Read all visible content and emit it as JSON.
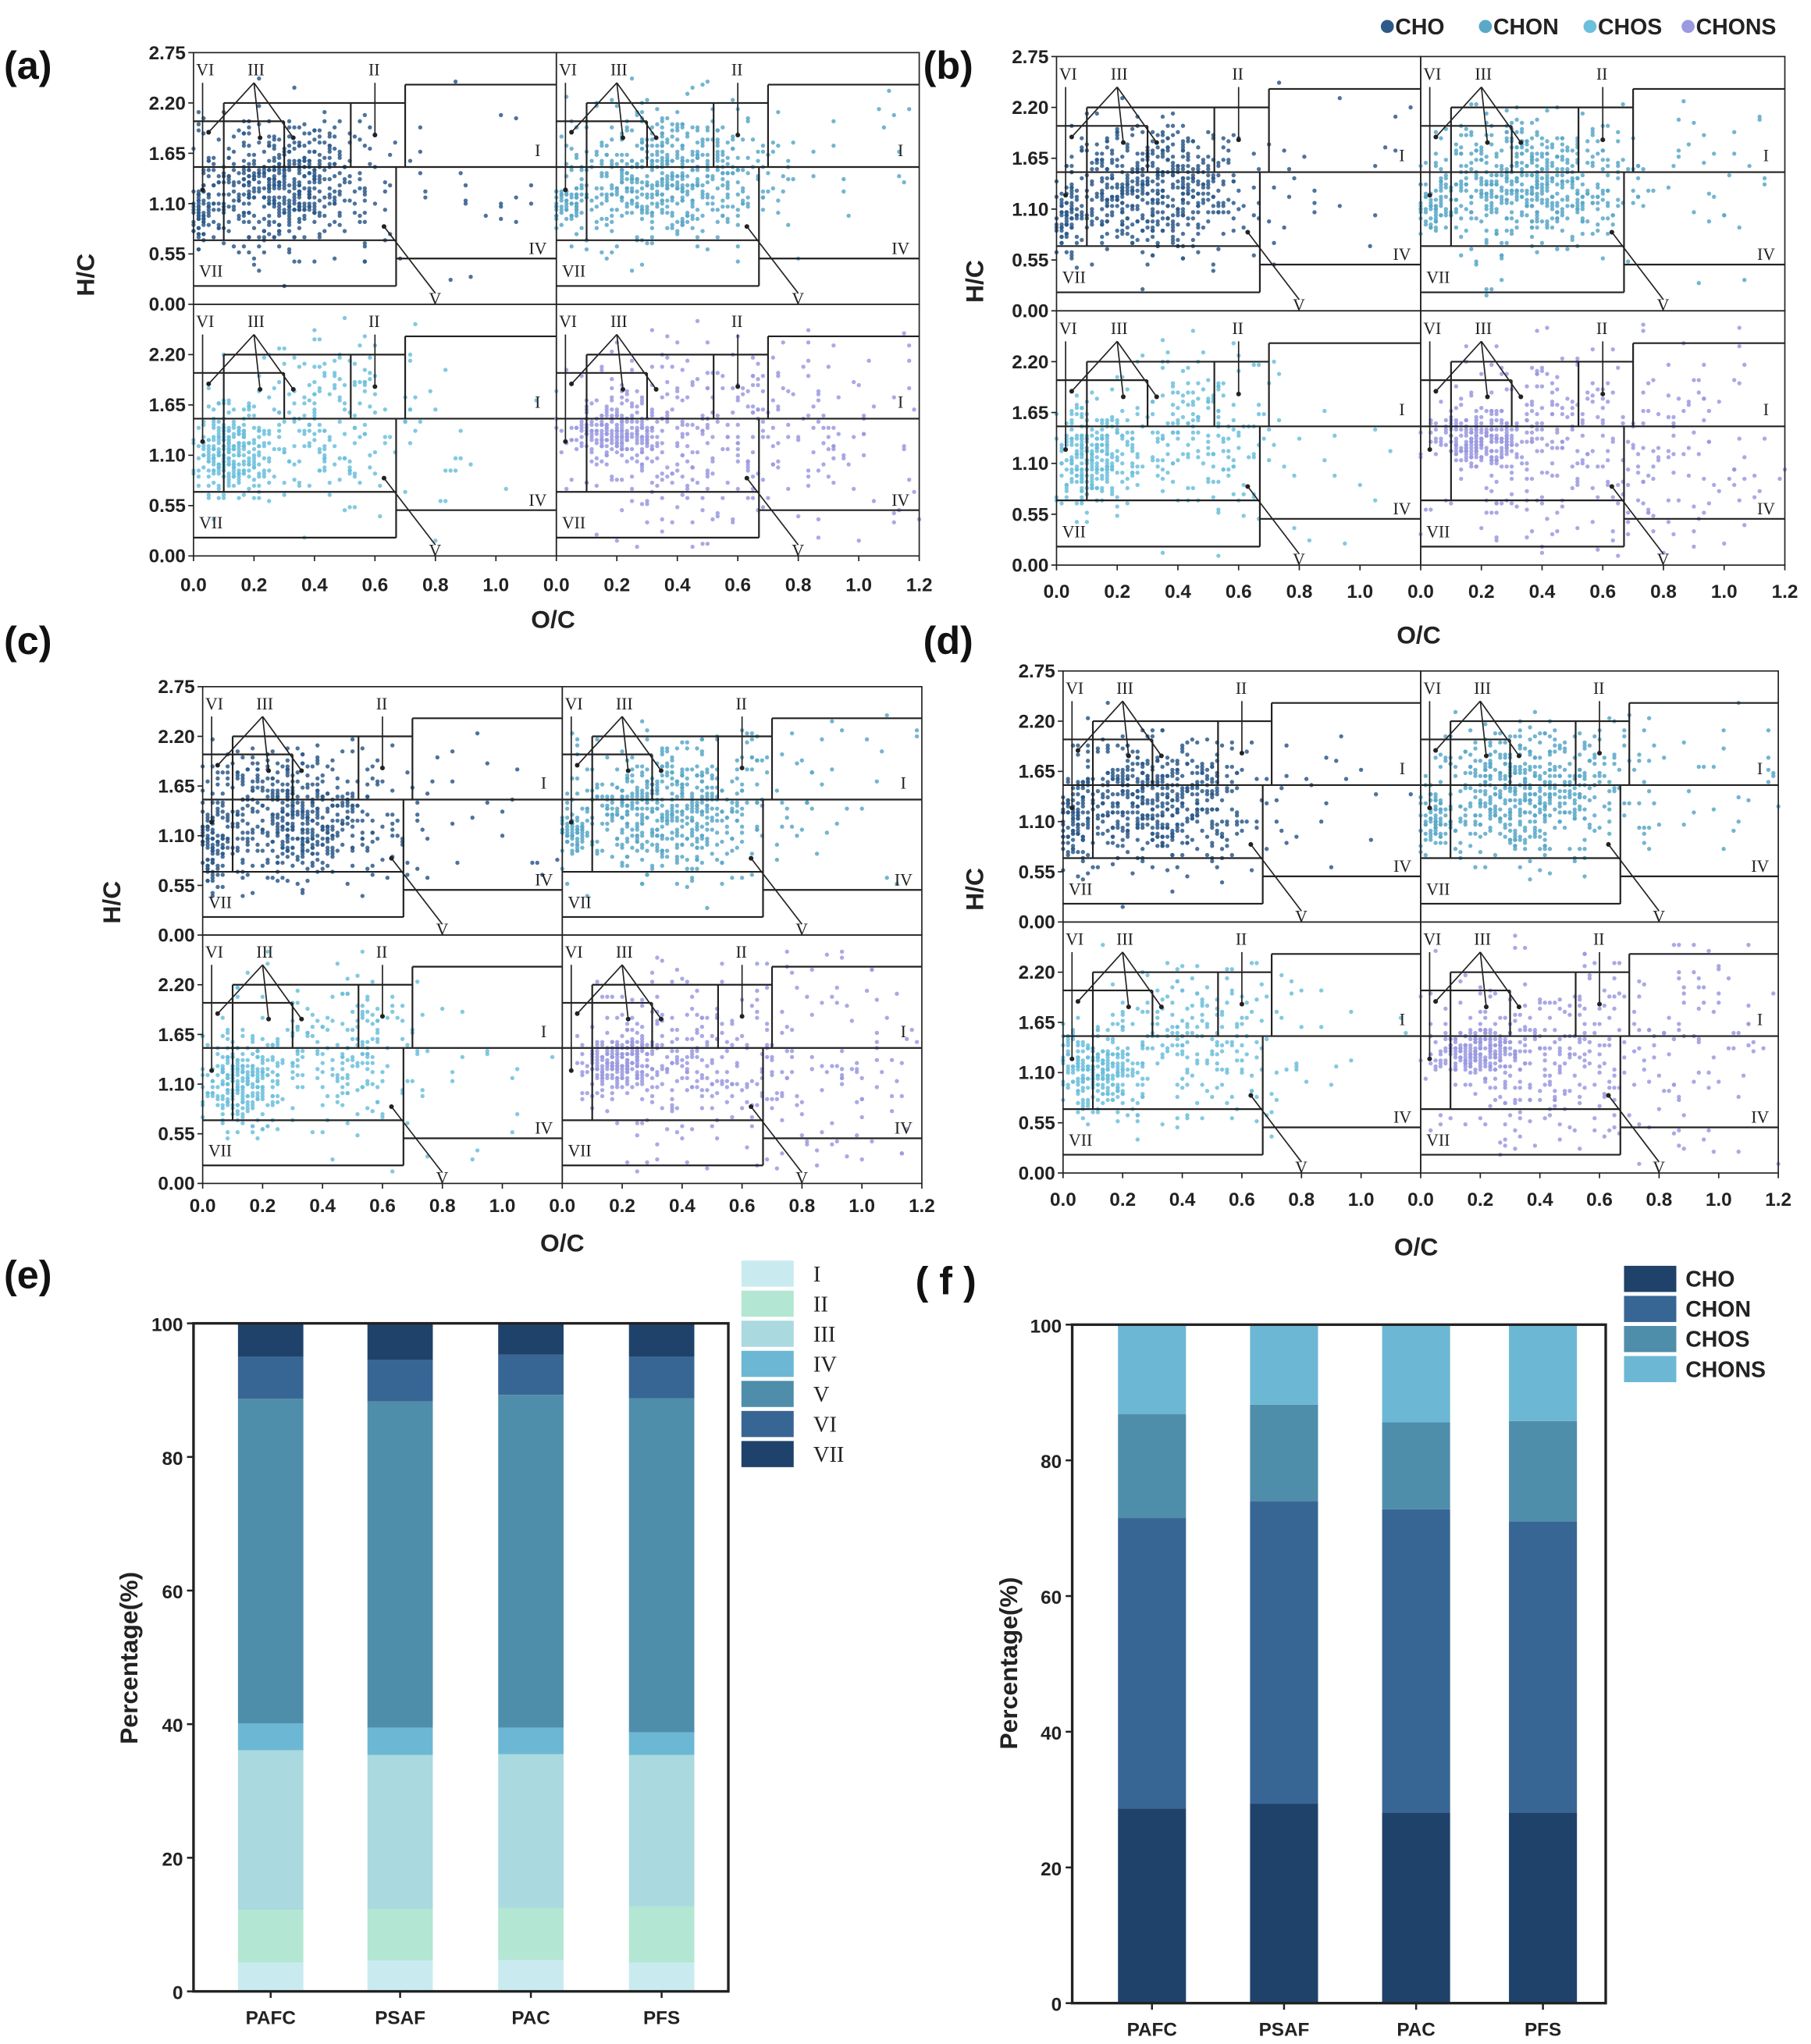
{
  "legend_top": {
    "items": [
      {
        "label": "CHO",
        "color": "#2e5a8a"
      },
      {
        "label": "CHON",
        "color": "#5aa8c8"
      },
      {
        "label": "CHOS",
        "color": "#6cc0dc"
      },
      {
        "label": "CHONS",
        "color": "#9b9ae0"
      }
    ]
  },
  "chart_data": [
    {
      "type": "scatter",
      "panels": [
        {
          "label": "(a)",
          "xlabel": "O/C",
          "ylabel": "H/C"
        },
        {
          "label": "(b)",
          "xlabel": "O/C",
          "ylabel": "H/C"
        },
        {
          "label": "(c)",
          "xlabel": "O/C",
          "ylabel": "H/C"
        },
        {
          "label": "(d)",
          "xlabel": "O/C",
          "ylabel": "H/C"
        }
      ],
      "subplots": [
        "CHO",
        "CHON",
        "CHOS",
        "CHONS"
      ],
      "xlim": [
        0,
        1.2
      ],
      "ylim": [
        0,
        2.75
      ],
      "x_ticks_left": [
        "0.0",
        "0.2",
        "0.4",
        "0.6",
        "0.8",
        "1.0"
      ],
      "x_ticks_right": [
        "0.0",
        "0.2",
        "0.4",
        "0.6",
        "0.8",
        "1.0",
        "1.2"
      ],
      "y_ticks_top": [
        "0.00",
        "0.55",
        "1.10",
        "1.65",
        "2.20",
        "2.75"
      ],
      "y_ticks_bottom": [
        "0.00",
        "0.55",
        "1.10",
        "1.65",
        "2.20"
      ],
      "region_labels": {
        "I": "I",
        "II": "II",
        "III": "III",
        "IV": "IV",
        "V": "V",
        "VI": "VI",
        "VII": "VII"
      },
      "region_boundaries": [
        [
          0,
          2.0,
          0.3,
          2.0
        ],
        [
          0.1,
          2.2,
          0.7,
          2.2
        ],
        [
          0.7,
          2.4,
          1.2,
          2.4
        ],
        [
          0.1,
          1.5,
          0.1,
          2.2
        ],
        [
          0.3,
          1.5,
          0.3,
          2.0
        ],
        [
          0.52,
          1.5,
          0.52,
          2.2
        ],
        [
          0.7,
          1.5,
          0.7,
          2.4
        ],
        [
          0,
          1.5,
          1.2,
          1.5
        ],
        [
          0.1,
          0.7,
          0.1,
          1.5
        ],
        [
          0.67,
          0.2,
          0.67,
          1.5
        ],
        [
          0,
          0.7,
          0.67,
          0.7
        ],
        [
          0,
          0.2,
          0.67,
          0.2
        ],
        [
          0.67,
          0.5,
          1.2,
          0.5
        ]
      ],
      "point_clusters": {
        "CHO": [
          {
            "cx": 0.3,
            "cy": 1.3,
            "sx": 0.15,
            "sy": 0.35,
            "n": 520
          },
          {
            "cx": 0.03,
            "cy": 1.0,
            "sx": 0.03,
            "sy": 0.2,
            "n": 80
          },
          {
            "cx": 0.75,
            "cy": 1.4,
            "sx": 0.25,
            "sy": 0.5,
            "n": 40
          }
        ],
        "CHON": [
          {
            "cx": 0.35,
            "cy": 1.4,
            "sx": 0.16,
            "sy": 0.35,
            "n": 520
          },
          {
            "cx": 0.04,
            "cy": 1.1,
            "sx": 0.03,
            "sy": 0.15,
            "n": 60
          },
          {
            "cx": 0.85,
            "cy": 1.6,
            "sx": 0.25,
            "sy": 0.5,
            "n": 50
          }
        ],
        "CHOS": [
          {
            "cx": 0.12,
            "cy": 1.15,
            "sx": 0.07,
            "sy": 0.25,
            "n": 260
          },
          {
            "cx": 0.45,
            "cy": 1.5,
            "sx": 0.15,
            "sy": 0.45,
            "n": 200
          },
          {
            "cx": 0.7,
            "cy": 1.2,
            "sx": 0.25,
            "sy": 0.6,
            "n": 25
          }
        ],
        "CHONS": [
          {
            "cx": 0.2,
            "cy": 1.35,
            "sx": 0.07,
            "sy": 0.15,
            "n": 200
          },
          {
            "cx": 0.4,
            "cy": 1.3,
            "sx": 0.2,
            "sy": 0.55,
            "n": 260
          },
          {
            "cx": 0.9,
            "cy": 1.3,
            "sx": 0.22,
            "sy": 0.7,
            "n": 110
          }
        ]
      }
    },
    {
      "type": "bar",
      "stacked": true,
      "label": "(e)",
      "categories": [
        "PAFC",
        "PSAF",
        "PAC",
        "PFS"
      ],
      "ylabel": "Percentage(%)",
      "xlabel": "",
      "ylim": [
        0,
        100
      ],
      "y_ticks": [
        "0",
        "20",
        "40",
        "60",
        "80",
        "100"
      ],
      "legend_position": "top-right outside",
      "series": [
        {
          "name": "I",
          "color": "#c9ebf0",
          "values": [
            4.3,
            4.6,
            4.7,
            4.3
          ]
        },
        {
          "name": "II",
          "color": "#b3e6d3",
          "values": [
            7.9,
            7.7,
            7.8,
            8.4
          ]
        },
        {
          "name": "III",
          "color": "#aad9df",
          "values": [
            23.9,
            23.1,
            23.0,
            22.7
          ]
        },
        {
          "name": "IV",
          "color": "#6cb8d4",
          "values": [
            4.0,
            4.1,
            4.0,
            3.4
          ]
        },
        {
          "name": "V",
          "color": "#4f8eab",
          "values": [
            48.6,
            48.8,
            49.8,
            50.0
          ]
        },
        {
          "name": "VI",
          "color": "#386694",
          "values": [
            6.3,
            6.2,
            6.0,
            6.2
          ]
        },
        {
          "name": "VII",
          "color": "#1f426b",
          "values": [
            5.0,
            5.5,
            4.7,
            5.0
          ]
        }
      ]
    },
    {
      "type": "bar",
      "stacked": true,
      "label": "( f )",
      "categories": [
        "PAFC",
        "PSAF",
        "PAC",
        "PFS"
      ],
      "ylabel": "Percentage(%)",
      "xlabel": "",
      "ylim": [
        0,
        100
      ],
      "y_ticks": [
        "0",
        "20",
        "40",
        "60",
        "80",
        "100"
      ],
      "legend_position": "top-right outside",
      "series": [
        {
          "name": "CHO",
          "color": "#1f426b",
          "values": [
            28.7,
            29.4,
            28.1,
            28.1
          ]
        },
        {
          "name": "CHON",
          "color": "#386694",
          "values": [
            42.8,
            44.6,
            44.7,
            42.9
          ]
        },
        {
          "name": "CHOS",
          "color": "#4f8eab",
          "values": [
            15.3,
            14.2,
            12.8,
            14.8
          ]
        },
        {
          "name": "CHONS",
          "color": "#6cb8d4",
          "values": [
            13.2,
            11.8,
            14.4,
            14.2
          ]
        }
      ]
    }
  ]
}
